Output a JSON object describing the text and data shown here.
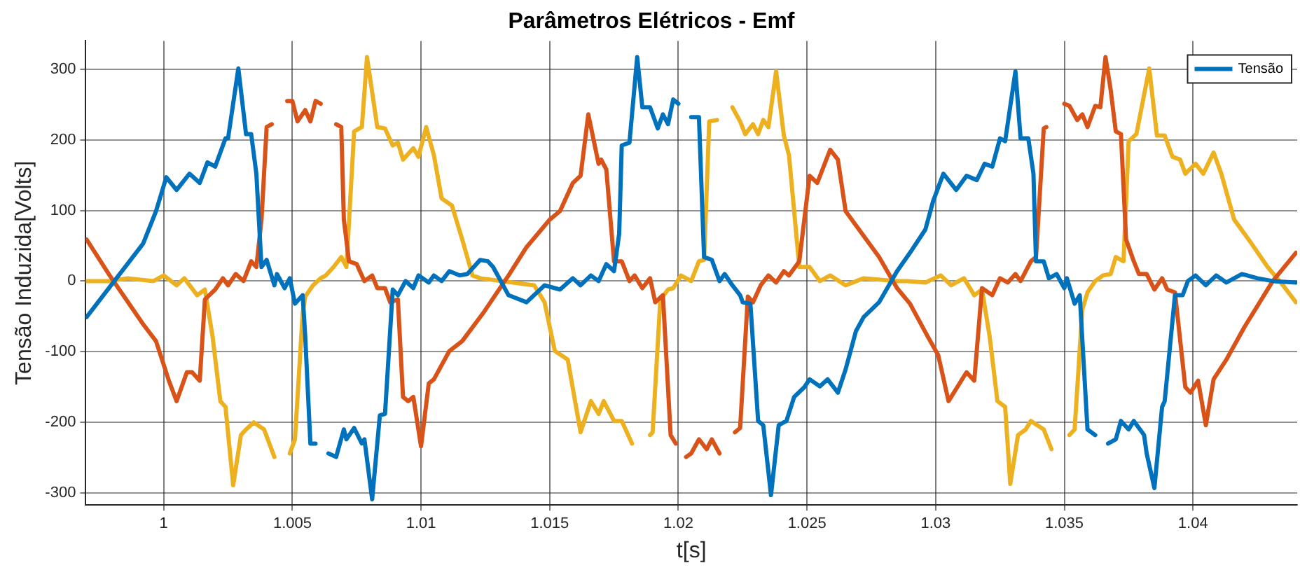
{
  "chart_data": {
    "type": "line",
    "title": "Parâmetros Elétricos - Emf",
    "xlabel": "t[s]",
    "ylabel": "Tensão Induzida[Volts]",
    "xlim": [
      0.99697,
      1.04405
    ],
    "xticks": [
      1,
      1.005,
      1.01,
      1.015,
      1.02,
      1.025,
      1.03,
      1.035,
      1.04
    ],
    "ylim": [
      -317,
      340
    ],
    "yticks": [
      -300,
      -200,
      -100,
      0,
      100,
      200,
      300
    ],
    "grid": true,
    "legend": "top right",
    "marker": "none",
    "line_style": "solid",
    "series": [
      {
        "name": "Tensão",
        "color": "#0072bd",
        "x": [
          0.997,
          0.9992,
          0.9997,
          1.0001,
          1.0005,
          1.001,
          1.0014,
          1.0017,
          1.002,
          1.0024,
          1.0025,
          1.0029,
          1.0032,
          1.0034,
          1.0036,
          1.0038,
          1.004,
          1.0043,
          1.0044,
          1.0047,
          1.0049,
          1.0051,
          1.0054,
          1.0055,
          1.0057,
          1.0059,
          1.0062,
          1.0064,
          1.0067,
          1.007,
          1.0071,
          1.0074,
          1.0077,
          1.0078,
          1.0081,
          1.0084,
          1.0086,
          1.0089,
          1.0091,
          1.0094,
          1.0097,
          1.0099,
          1.0103,
          1.0105,
          1.0108,
          1.0111,
          1.0115,
          1.0118,
          1.0123,
          1.0126,
          1.0128,
          1.0134,
          1.0141,
          1.0148,
          1.0154,
          1.0159,
          1.0162,
          1.0166,
          1.0169,
          1.0172,
          1.0175,
          1.0177,
          1.0178,
          1.0181,
          1.0184,
          1.0186,
          1.0189,
          1.0192,
          1.0194,
          1.0196,
          1.0198,
          1.02,
          1.0203,
          1.0205,
          1.0208,
          1.021,
          1.0213,
          1.0216,
          1.0218,
          1.0221,
          1.0224,
          1.0225,
          1.0228,
          1.0231,
          1.0233,
          1.0236,
          1.0239,
          1.0242,
          1.0245,
          1.0249,
          1.0251,
          1.0255,
          1.0258,
          1.0262,
          1.0265,
          1.0269,
          1.0272,
          1.0278,
          1.0285,
          1.029,
          1.0296,
          1.0299,
          1.0303,
          1.0308,
          1.0312,
          1.0316,
          1.0319,
          1.0322,
          1.0325,
          1.0327,
          1.0331,
          1.0333,
          1.0336,
          1.0338,
          1.0339,
          1.0342,
          1.0344,
          1.0347,
          1.035,
          1.0351,
          1.0354,
          1.0356,
          1.0359,
          1.0362,
          1.0364,
          1.0367,
          1.037,
          1.0372,
          1.0375,
          1.0377,
          1.0381,
          1.0382,
          1.0385,
          1.0388,
          1.0389,
          1.0393,
          1.0396,
          1.0398,
          1.0401,
          1.0405,
          1.0409,
          1.0413,
          1.0419,
          1.0425,
          1.0431,
          1.044
        ],
        "values": [
          -51,
          53,
          99,
          147,
          129,
          152,
          139,
          168,
          162,
          202,
          202,
          301,
          208,
          208,
          152,
          20,
          30,
          -6,
          10,
          -10,
          4,
          -32,
          -20,
          -79,
          -230,
          -230,
          null,
          -244,
          -249,
          -210,
          -224,
          -208,
          -230,
          -224,
          -309,
          -190,
          -188,
          -12,
          -20,
          0,
          -10,
          8,
          -2,
          8,
          0,
          14,
          8,
          10,
          30,
          28,
          20,
          -20,
          -30,
          -6,
          -12,
          4,
          -6,
          8,
          0,
          24,
          14,
          67,
          192,
          196,
          317,
          246,
          246,
          216,
          236,
          222,
          257,
          251,
          null,
          232,
          232,
          34,
          30,
          0,
          10,
          -6,
          -20,
          -30,
          -32,
          -198,
          -204,
          -303,
          -204,
          -198,
          -164,
          -150,
          -139,
          -149,
          -139,
          -158,
          -125,
          -71,
          -51,
          -30,
          14,
          40,
          73,
          113,
          152,
          129,
          149,
          143,
          166,
          162,
          202,
          198,
          297,
          202,
          202,
          152,
          28,
          28,
          4,
          10,
          -10,
          4,
          -32,
          -20,
          -210,
          -218,
          null,
          -230,
          -224,
          -198,
          -210,
          -198,
          -218,
          -244,
          -293,
          -178,
          -170,
          -20,
          -20,
          0,
          8,
          -6,
          8,
          -2,
          10,
          4,
          0,
          -2
        ]
      },
      {
        "color": "#d95319",
        "x": [
          0.997,
          0.9979,
          0.9992,
          0.9997,
          1.0002,
          1.0005,
          1.0009,
          1.0011,
          1.0014,
          1.0016,
          1.002,
          1.0023,
          1.0025,
          1.0028,
          1.0031,
          1.0034,
          1.0036,
          1.0038,
          1.004,
          1.0042,
          1.0044,
          1.0046,
          1.0048,
          1.005,
          1.0052,
          1.0055,
          1.0057,
          1.0059,
          1.0061,
          1.0063,
          1.0065,
          1.0067,
          1.0069,
          1.007,
          1.0072,
          1.0075,
          1.0078,
          1.0081,
          1.0083,
          1.0086,
          1.0088,
          1.0091,
          1.0093,
          1.0095,
          1.0097,
          1.01,
          1.0103,
          1.0105,
          1.0111,
          1.0116,
          1.0124,
          1.0134,
          1.0141,
          1.015,
          1.0154,
          1.0159,
          1.0162,
          1.0165,
          1.0169,
          1.017,
          1.0172,
          1.0175,
          1.0178,
          1.0181,
          1.0183,
          1.0186,
          1.0189,
          1.0191,
          1.0194,
          1.0197,
          1.0199,
          1.02,
          1.0203,
          1.0205,
          1.0208,
          1.0211,
          1.0213,
          1.0216,
          1.0219,
          1.0222,
          1.0224,
          1.0227,
          1.0229,
          1.0232,
          1.0235,
          1.0238,
          1.0241,
          1.0243,
          1.0247,
          1.0251,
          1.0254,
          1.0259,
          1.0262,
          1.0265,
          1.0269,
          1.0278,
          1.0285,
          1.029,
          1.0297,
          1.0301,
          1.0305,
          1.0312,
          1.0315,
          1.0318,
          1.0322,
          1.0325,
          1.0328,
          1.0331,
          1.0333,
          1.0337,
          1.0339,
          1.0342,
          1.0343,
          1.0347,
          1.035,
          1.0352,
          1.0355,
          1.0357,
          1.0359,
          1.0362,
          1.0364,
          1.0366,
          1.0368,
          1.037,
          1.0372,
          1.0374,
          1.0377,
          1.0379,
          1.0382,
          1.0385,
          1.0388,
          1.039,
          1.0393,
          1.0397,
          1.0399,
          1.0402,
          1.0405,
          1.0408,
          1.0413,
          1.042,
          1.0431,
          1.044
        ],
        "values": [
          59,
          8,
          -61,
          -85,
          -141,
          -170,
          -129,
          -129,
          -141,
          -26,
          -12,
          4,
          -6,
          10,
          0,
          28,
          20,
          87,
          218,
          222,
          null,
          null,
          255,
          255,
          226,
          242,
          226,
          255,
          251,
          null,
          null,
          222,
          218,
          87,
          28,
          24,
          0,
          8,
          -10,
          -10,
          -30,
          -26,
          -164,
          -170,
          -164,
          -234,
          -145,
          -139,
          -99,
          -85,
          -46,
          8,
          48,
          87,
          99,
          139,
          149,
          236,
          166,
          172,
          158,
          28,
          28,
          0,
          8,
          -10,
          4,
          -30,
          -20,
          -218,
          -230,
          null,
          -249,
          -244,
          -224,
          -238,
          -224,
          -244,
          null,
          -214,
          -208,
          -22,
          -30,
          -6,
          8,
          -2,
          14,
          8,
          28,
          149,
          139,
          186,
          172,
          99,
          79,
          34,
          -10,
          -32,
          -79,
          -105,
          -170,
          -129,
          -141,
          -10,
          -20,
          4,
          -2,
          10,
          0,
          28,
          34,
          216,
          218,
          null,
          251,
          248,
          228,
          236,
          218,
          248,
          246,
          317,
          271,
          212,
          208,
          59,
          28,
          10,
          10,
          -12,
          4,
          -12,
          -16,
          -150,
          -158,
          -141,
          -204,
          -139,
          -111,
          -65,
          0,
          40
        ]
      },
      {
        "color": "#edb120",
        "x": [
          0.997,
          0.9979,
          0.9986,
          0.9996,
          1.0,
          1.0005,
          1.0008,
          1.0013,
          1.0016,
          1.0019,
          1.0022,
          1.0024,
          1.0027,
          1.003,
          1.0032,
          1.0035,
          1.0039,
          1.0043,
          1.0046,
          1.0049,
          1.0051,
          1.0054,
          1.0055,
          1.0058,
          1.0061,
          1.0063,
          1.0066,
          1.0069,
          1.0071,
          1.0074,
          1.0077,
          1.0079,
          1.0083,
          1.0086,
          1.0089,
          1.0091,
          1.0093,
          1.0097,
          1.0099,
          1.0102,
          1.0105,
          1.0108,
          1.0112,
          1.0116,
          1.012,
          1.0123,
          1.0144,
          1.0148,
          1.0152,
          1.0157,
          1.0162,
          1.0166,
          1.0169,
          1.0171,
          1.0175,
          1.0178,
          1.0182,
          1.0185,
          1.0189,
          1.019,
          1.0193,
          1.0196,
          1.0198,
          1.0201,
          1.0205,
          1.0208,
          1.021,
          1.0212,
          1.0215,
          1.0217,
          1.0221,
          1.0224,
          1.0226,
          1.0229,
          1.0231,
          1.0233,
          1.0235,
          1.0238,
          1.0241,
          1.0243,
          1.0247,
          1.0251,
          1.0255,
          1.0259,
          1.0265,
          1.0272,
          1.0285,
          1.0289,
          1.0296,
          1.0302,
          1.0306,
          1.0311,
          1.0315,
          1.0318,
          1.0321,
          1.0324,
          1.0327,
          1.0329,
          1.0332,
          1.0335,
          1.0337,
          1.0342,
          1.0345,
          1.0349,
          1.0352,
          1.0354,
          1.0357,
          1.0359,
          1.0362,
          1.0365,
          1.0368,
          1.037,
          1.0373,
          1.0375,
          1.0378,
          1.0383,
          1.0386,
          1.0389,
          1.0392,
          1.0395,
          1.0397,
          1.0401,
          1.0404,
          1.0408,
          1.0411,
          1.0416,
          1.0422,
          1.0429,
          1.0435,
          1.044
        ],
        "values": [
          0,
          0,
          4,
          0,
          8,
          -6,
          4,
          -20,
          -12,
          -79,
          -170,
          -178,
          -289,
          -218,
          -210,
          -200,
          -210,
          -249,
          null,
          -244,
          -224,
          -46,
          -22,
          -6,
          4,
          8,
          20,
          34,
          20,
          212,
          218,
          317,
          218,
          216,
          192,
          196,
          172,
          188,
          176,
          218,
          178,
          117,
          107,
          59,
          8,
          4,
          -6,
          -30,
          -99,
          -111,
          -214,
          -170,
          -188,
          -170,
          -198,
          -198,
          -230,
          null,
          -218,
          -214,
          -26,
          -12,
          -10,
          8,
          0,
          28,
          30,
          226,
          228,
          null,
          246,
          226,
          208,
          222,
          208,
          228,
          218,
          297,
          206,
          178,
          20,
          20,
          0,
          8,
          -6,
          4,
          0,
          0,
          -2,
          8,
          -6,
          4,
          -20,
          -12,
          -79,
          -170,
          -178,
          -287,
          -218,
          -210,
          -198,
          -210,
          -238,
          null,
          -218,
          -210,
          -40,
          -16,
          0,
          8,
          10,
          34,
          28,
          198,
          208,
          301,
          206,
          206,
          176,
          172,
          152,
          166,
          152,
          182,
          152,
          87,
          57,
          20,
          -6,
          -30
        ]
      }
    ]
  }
}
